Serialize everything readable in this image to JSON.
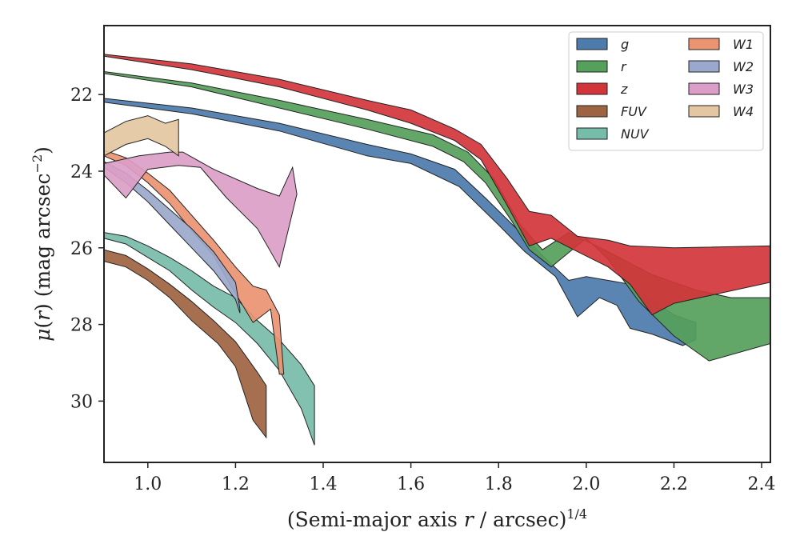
{
  "chart_data": {
    "type": "area",
    "xlabel": "(Semi-major axis r / arcsec)^1/4",
    "ylabel": "μ(r) (mag arcsec^-2)",
    "xlim": [
      0.9,
      2.42
    ],
    "ylim": [
      31.6,
      20.2
    ],
    "y_inverted": true,
    "x_ticks": [
      "1.0",
      "1.2",
      "1.4",
      "1.6",
      "1.8",
      "2.0",
      "2.2",
      "2.4"
    ],
    "x_tick_values": [
      1.0,
      1.2,
      1.4,
      1.6,
      1.8,
      2.0,
      2.2,
      2.4
    ],
    "y_ticks": [
      "22",
      "24",
      "26",
      "28",
      "30"
    ],
    "y_tick_values": [
      22,
      24,
      26,
      28,
      30
    ],
    "grid": false,
    "legend_position": "top-right",
    "legend_columns": 2,
    "series": [
      {
        "name": "g",
        "color": "#4c7bac",
        "upper": [
          [
            0.9,
            22.1
          ],
          [
            1.1,
            22.35
          ],
          [
            1.3,
            22.75
          ],
          [
            1.5,
            23.3
          ],
          [
            1.6,
            23.55
          ],
          [
            1.7,
            23.95
          ],
          [
            1.77,
            24.7
          ],
          [
            1.85,
            25.6
          ],
          [
            1.9,
            26.2
          ],
          [
            1.96,
            26.85
          ],
          [
            2.0,
            26.75
          ],
          [
            2.05,
            26.85
          ],
          [
            2.1,
            26.95
          ],
          [
            2.15,
            27.35
          ],
          [
            2.2,
            27.75
          ],
          [
            2.25,
            27.95
          ]
        ],
        "lower": [
          [
            0.9,
            22.2
          ],
          [
            1.1,
            22.5
          ],
          [
            1.3,
            22.95
          ],
          [
            1.5,
            23.6
          ],
          [
            1.6,
            23.8
          ],
          [
            1.71,
            24.4
          ],
          [
            1.8,
            25.4
          ],
          [
            1.86,
            26.1
          ],
          [
            1.93,
            26.75
          ],
          [
            1.98,
            27.8
          ],
          [
            2.03,
            27.3
          ],
          [
            2.07,
            27.5
          ],
          [
            2.1,
            28.1
          ],
          [
            2.15,
            28.25
          ],
          [
            2.22,
            28.55
          ],
          [
            2.25,
            28.4
          ]
        ]
      },
      {
        "name": "r",
        "color": "#55a05a",
        "upper": [
          [
            0.9,
            21.4
          ],
          [
            1.1,
            21.7
          ],
          [
            1.3,
            22.15
          ],
          [
            1.5,
            22.65
          ],
          [
            1.65,
            23.05
          ],
          [
            1.73,
            23.5
          ],
          [
            1.79,
            24.2
          ],
          [
            1.85,
            25.4
          ],
          [
            1.9,
            26.05
          ],
          [
            1.96,
            25.6
          ],
          [
            2.05,
            26.1
          ],
          [
            2.15,
            26.7
          ],
          [
            2.25,
            27.1
          ],
          [
            2.33,
            27.3
          ],
          [
            2.42,
            27.3
          ]
        ],
        "lower": [
          [
            0.9,
            21.45
          ],
          [
            1.1,
            21.8
          ],
          [
            1.3,
            22.35
          ],
          [
            1.5,
            22.9
          ],
          [
            1.65,
            23.35
          ],
          [
            1.72,
            23.75
          ],
          [
            1.77,
            24.3
          ],
          [
            1.83,
            25.3
          ],
          [
            1.87,
            26.05
          ],
          [
            1.92,
            26.5
          ],
          [
            2.0,
            25.75
          ],
          [
            2.05,
            26.3
          ],
          [
            2.12,
            27.4
          ],
          [
            2.2,
            28.3
          ],
          [
            2.28,
            28.95
          ],
          [
            2.42,
            28.5
          ]
        ]
      },
      {
        "name": "z",
        "color": "#d1353a",
        "upper": [
          [
            0.9,
            20.95
          ],
          [
            1.1,
            21.2
          ],
          [
            1.3,
            21.6
          ],
          [
            1.5,
            22.15
          ],
          [
            1.6,
            22.4
          ],
          [
            1.7,
            22.9
          ],
          [
            1.76,
            23.3
          ],
          [
            1.82,
            24.2
          ],
          [
            1.87,
            25.05
          ],
          [
            1.92,
            25.15
          ],
          [
            1.98,
            25.7
          ],
          [
            2.05,
            25.8
          ],
          [
            2.1,
            25.95
          ],
          [
            2.2,
            26.0
          ],
          [
            2.42,
            25.95
          ]
        ],
        "lower": [
          [
            0.9,
            21.0
          ],
          [
            1.1,
            21.35
          ],
          [
            1.3,
            21.8
          ],
          [
            1.5,
            22.4
          ],
          [
            1.6,
            22.75
          ],
          [
            1.7,
            23.2
          ],
          [
            1.76,
            23.7
          ],
          [
            1.82,
            24.9
          ],
          [
            1.87,
            25.95
          ],
          [
            1.92,
            25.75
          ],
          [
            1.98,
            26.1
          ],
          [
            2.05,
            26.5
          ],
          [
            2.1,
            26.95
          ],
          [
            2.15,
            27.75
          ],
          [
            2.2,
            27.45
          ],
          [
            2.42,
            26.9
          ]
        ]
      },
      {
        "name": "FUV",
        "color": "#9e6340",
        "upper": [
          [
            0.9,
            26.05
          ],
          [
            0.95,
            26.2
          ],
          [
            1.0,
            26.55
          ],
          [
            1.05,
            26.95
          ],
          [
            1.1,
            27.4
          ],
          [
            1.15,
            27.9
          ],
          [
            1.2,
            28.45
          ],
          [
            1.25,
            29.25
          ],
          [
            1.27,
            29.6
          ]
        ],
        "lower": [
          [
            0.9,
            26.35
          ],
          [
            0.95,
            26.5
          ],
          [
            1.0,
            26.85
          ],
          [
            1.05,
            27.3
          ],
          [
            1.1,
            27.9
          ],
          [
            1.16,
            28.5
          ],
          [
            1.2,
            29.1
          ],
          [
            1.24,
            30.5
          ],
          [
            1.27,
            30.95
          ]
        ]
      },
      {
        "name": "NUV",
        "color": "#77bca8",
        "upper": [
          [
            0.9,
            25.6
          ],
          [
            0.95,
            25.7
          ],
          [
            1.0,
            25.95
          ],
          [
            1.05,
            26.25
          ],
          [
            1.1,
            26.6
          ],
          [
            1.15,
            27.0
          ],
          [
            1.2,
            27.3
          ],
          [
            1.25,
            27.9
          ],
          [
            1.3,
            28.4
          ],
          [
            1.35,
            29.05
          ],
          [
            1.38,
            29.6
          ]
        ],
        "lower": [
          [
            0.9,
            25.75
          ],
          [
            0.95,
            25.9
          ],
          [
            1.0,
            26.25
          ],
          [
            1.05,
            26.6
          ],
          [
            1.1,
            27.1
          ],
          [
            1.15,
            27.55
          ],
          [
            1.2,
            27.95
          ],
          [
            1.25,
            28.5
          ],
          [
            1.3,
            29.2
          ],
          [
            1.35,
            30.2
          ],
          [
            1.38,
            31.15
          ]
        ]
      },
      {
        "name": "W1",
        "color": "#ea9471",
        "upper": [
          [
            0.9,
            23.45
          ],
          [
            0.95,
            23.65
          ],
          [
            1.0,
            24.05
          ],
          [
            1.05,
            24.5
          ],
          [
            1.1,
            25.15
          ],
          [
            1.15,
            25.8
          ],
          [
            1.2,
            26.5
          ],
          [
            1.24,
            27.0
          ],
          [
            1.27,
            27.1
          ],
          [
            1.3,
            27.75
          ],
          [
            1.31,
            29.3
          ]
        ],
        "lower": [
          [
            0.9,
            23.6
          ],
          [
            0.95,
            23.85
          ],
          [
            1.0,
            24.3
          ],
          [
            1.05,
            24.85
          ],
          [
            1.1,
            25.55
          ],
          [
            1.15,
            26.2
          ],
          [
            1.19,
            27.0
          ],
          [
            1.24,
            27.95
          ],
          [
            1.28,
            27.6
          ],
          [
            1.3,
            29.3
          ]
        ]
      },
      {
        "name": "W2",
        "color": "#9aa8cb",
        "upper": [
          [
            0.9,
            23.75
          ],
          [
            0.95,
            24.05
          ],
          [
            1.0,
            24.5
          ],
          [
            1.05,
            25.0
          ],
          [
            1.1,
            25.5
          ],
          [
            1.15,
            26.1
          ],
          [
            1.2,
            26.9
          ],
          [
            1.21,
            27.6
          ]
        ],
        "lower": [
          [
            0.9,
            23.9
          ],
          [
            0.95,
            24.3
          ],
          [
            1.0,
            24.8
          ],
          [
            1.05,
            25.4
          ],
          [
            1.1,
            26.0
          ],
          [
            1.15,
            26.6
          ],
          [
            1.2,
            27.35
          ],
          [
            1.21,
            27.7
          ]
        ]
      },
      {
        "name": "W3",
        "color": "#dc9ec8",
        "upper": [
          [
            0.9,
            23.8
          ],
          [
            0.98,
            23.6
          ],
          [
            1.05,
            23.5
          ],
          [
            1.08,
            23.5
          ],
          [
            1.15,
            23.95
          ],
          [
            1.25,
            24.45
          ],
          [
            1.3,
            24.65
          ],
          [
            1.33,
            23.9
          ],
          [
            1.34,
            24.6
          ]
        ],
        "lower": [
          [
            0.9,
            24.1
          ],
          [
            0.95,
            24.7
          ],
          [
            1.0,
            23.95
          ],
          [
            1.07,
            23.85
          ],
          [
            1.12,
            23.9
          ],
          [
            1.18,
            24.7
          ],
          [
            1.25,
            25.5
          ],
          [
            1.3,
            26.5
          ]
        ]
      },
      {
        "name": "W4",
        "color": "#e4c7a2",
        "upper": [
          [
            0.9,
            23.0
          ],
          [
            0.95,
            22.7
          ],
          [
            1.0,
            22.55
          ],
          [
            1.04,
            22.75
          ],
          [
            1.07,
            22.65
          ]
        ],
        "lower": [
          [
            0.9,
            23.6
          ],
          [
            0.95,
            23.3
          ],
          [
            1.0,
            23.15
          ],
          [
            1.04,
            23.35
          ],
          [
            1.07,
            23.6
          ]
        ]
      }
    ],
    "legend_entries": [
      "g",
      "r",
      "z",
      "FUV",
      "NUV",
      "W1",
      "W2",
      "W3",
      "W4"
    ]
  }
}
